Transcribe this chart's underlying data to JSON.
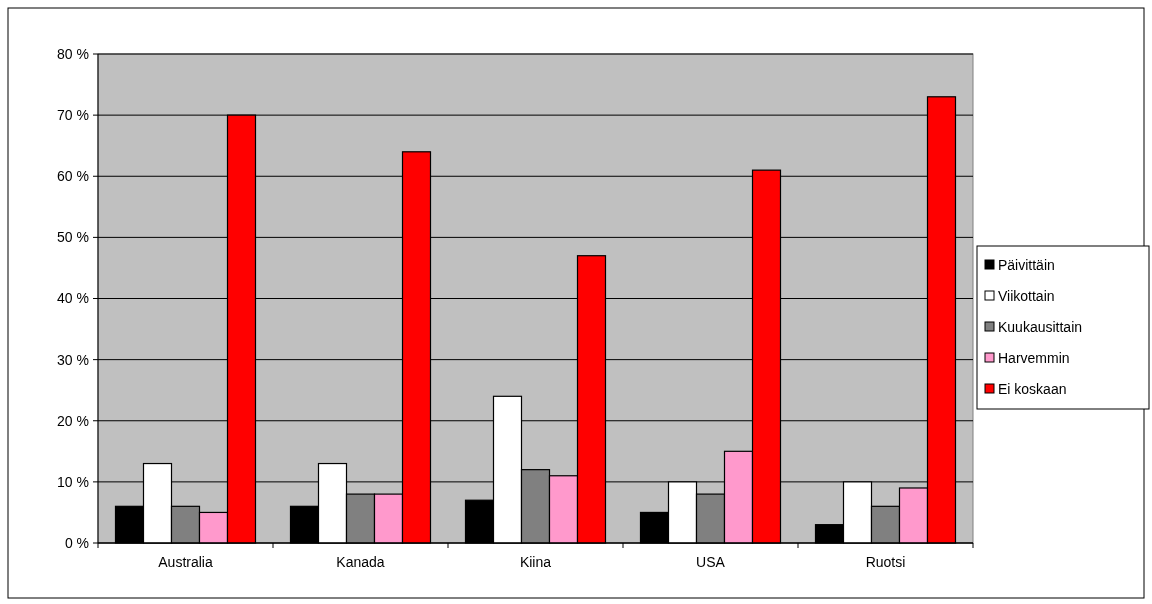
{
  "chart_data": {
    "type": "bar",
    "categories": [
      "Australia",
      "Kanada",
      "Kiina",
      "USA",
      "Ruotsi"
    ],
    "series": [
      {
        "name": "Päivittäin",
        "color": "#000000",
        "values": [
          6,
          6,
          7,
          5,
          3
        ]
      },
      {
        "name": "Viikottain",
        "color": "#ffffff",
        "values": [
          13,
          13,
          24,
          10,
          10
        ]
      },
      {
        "name": "Kuukausittain",
        "color": "#808080",
        "values": [
          6,
          8,
          12,
          8,
          6
        ]
      },
      {
        "name": "Harvemmin",
        "color": "#ff99cc",
        "values": [
          5,
          8,
          11,
          15,
          9
        ]
      },
      {
        "name": "Ei koskaan",
        "color": "#ff0000",
        "values": [
          70,
          64,
          47,
          61,
          73
        ]
      }
    ],
    "ylim": [
      0,
      80
    ],
    "yticks": [
      {
        "value": 0,
        "label": "0 %"
      },
      {
        "value": 10,
        "label": "10 %"
      },
      {
        "value": 20,
        "label": "20 %"
      },
      {
        "value": 30,
        "label": "30 %"
      },
      {
        "value": 40,
        "label": "40 %"
      },
      {
        "value": 50,
        "label": "50 %"
      },
      {
        "value": 60,
        "label": "60 %"
      },
      {
        "value": 70,
        "label": "70 %"
      },
      {
        "value": 80,
        "label": "80 %"
      }
    ],
    "grid": "y",
    "legend": "right"
  }
}
